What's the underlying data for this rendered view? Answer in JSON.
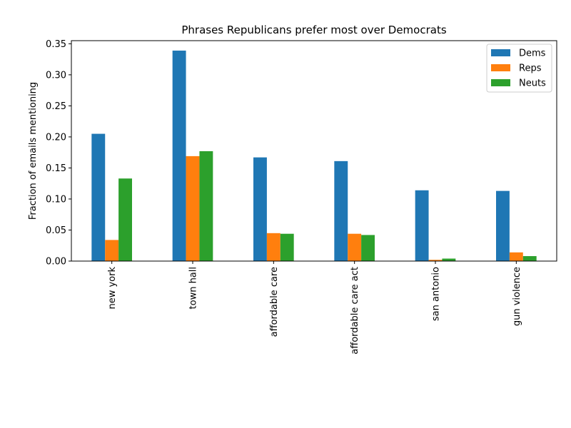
{
  "chart_data": {
    "type": "bar",
    "title": "Phrases Republicans prefer most over Democrats",
    "xlabel": "",
    "ylabel": "Fraction of emails mentioning",
    "categories": [
      "new york",
      "town hall",
      "affordable care",
      "affordable care act",
      "san antonio",
      "gun violence"
    ],
    "series": [
      {
        "name": "Dems",
        "color": "#1f77b4",
        "values": [
          0.205,
          0.339,
          0.167,
          0.161,
          0.114,
          0.113
        ]
      },
      {
        "name": "Reps",
        "color": "#ff7f0e",
        "values": [
          0.034,
          0.169,
          0.045,
          0.044,
          0.002,
          0.014
        ]
      },
      {
        "name": "Neuts",
        "color": "#2ca02c",
        "values": [
          0.133,
          0.177,
          0.044,
          0.042,
          0.004,
          0.008
        ]
      }
    ],
    "ylim": [
      0.0,
      0.355
    ],
    "yticks": [
      "0.00",
      "0.05",
      "0.10",
      "0.15",
      "0.20",
      "0.25",
      "0.30",
      "0.35"
    ],
    "grid": false,
    "legend_position": "top-right"
  }
}
